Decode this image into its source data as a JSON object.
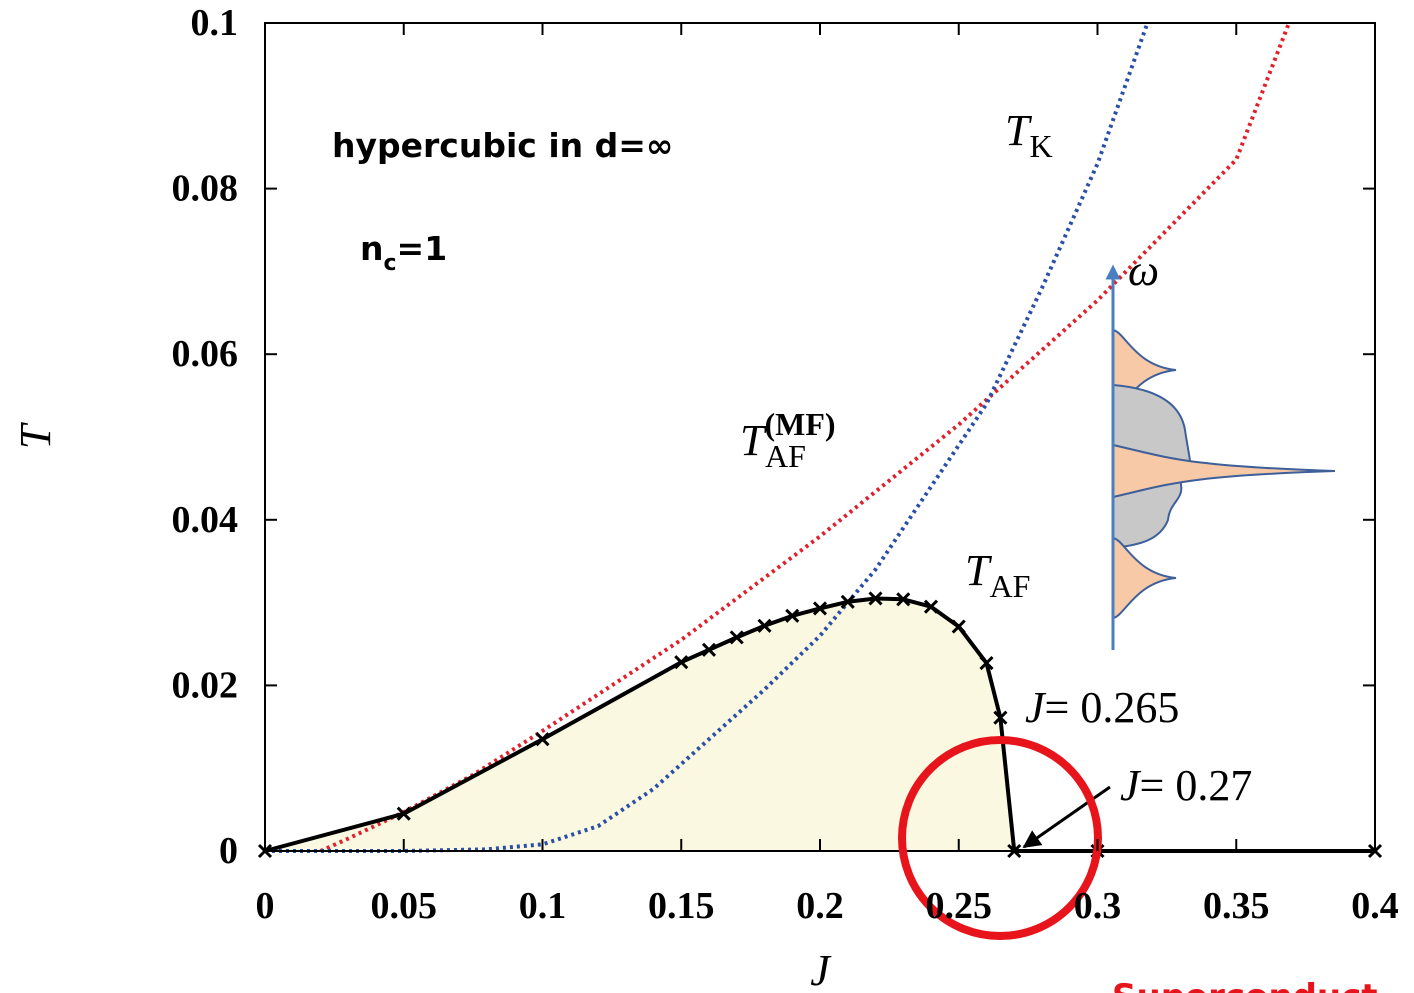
{
  "chart_data": {
    "type": "line",
    "xlabel": "J",
    "ylabel": "T",
    "xlim": [
      0,
      0.4
    ],
    "ylim": [
      0,
      0.1
    ],
    "xticks": [
      0,
      0.05,
      0.1,
      0.15,
      0.2,
      0.25,
      0.3,
      0.35,
      0.4
    ],
    "yticks": [
      0,
      0.02,
      0.04,
      0.06,
      0.08,
      0.1
    ],
    "series": [
      {
        "color": "#000000",
        "style": "solid",
        "marker": "x",
        "fill": "#faf8e0",
        "x": [
          0,
          0.05,
          0.1,
          0.15,
          0.16,
          0.17,
          0.18,
          0.19,
          0.2,
          0.21,
          0.22,
          0.23,
          0.24,
          0.25,
          0.26,
          0.265,
          0.27,
          0.3,
          0.4
        ],
        "values": [
          0,
          0.0045,
          0.0135,
          0.0228,
          0.0243,
          0.0258,
          0.0272,
          0.0284,
          0.0293,
          0.0301,
          0.0305,
          0.0304,
          0.0295,
          0.0271,
          0.0227,
          0.0161,
          0,
          0,
          0
        ]
      },
      {
        "color": "#e0202a",
        "style": "dotted",
        "x": [
          0.02,
          0.03,
          0.05,
          0.075,
          0.1,
          0.15,
          0.2,
          0.25,
          0.3,
          0.35,
          0.369
        ],
        "values": [
          0,
          0.0015,
          0.0047,
          0.0092,
          0.0145,
          0.0255,
          0.038,
          0.0515,
          0.0665,
          0.0835,
          0.1
        ]
      },
      {
        "color": "#2b4fa8",
        "style": "dotted",
        "x": [
          0,
          0.05,
          0.08,
          0.1,
          0.12,
          0.14,
          0.16,
          0.18,
          0.2,
          0.22,
          0.24,
          0.26,
          0.28,
          0.3,
          0.318
        ],
        "values": [
          0,
          0,
          0.0002,
          0.0008,
          0.003,
          0.0075,
          0.0135,
          0.0195,
          0.026,
          0.034,
          0.044,
          0.054,
          0.068,
          0.083,
          0.1
        ]
      }
    ],
    "annotations": [
      {
        "text": "hypercubic in d=∞"
      },
      {
        "text": "n",
        "sub": "c",
        "after": "=1"
      },
      {
        "text": "T",
        "sub": "K"
      },
      {
        "text": "T",
        "sub": "AF",
        "sup": "(MF)"
      },
      {
        "text": "T",
        "sub": "AF"
      },
      {
        "text": "J",
        "after": "= 0.265"
      },
      {
        "text": "J",
        "after": "= 0.27"
      },
      {
        "text": "ω"
      },
      {
        "text": "Superconduct"
      }
    ]
  }
}
